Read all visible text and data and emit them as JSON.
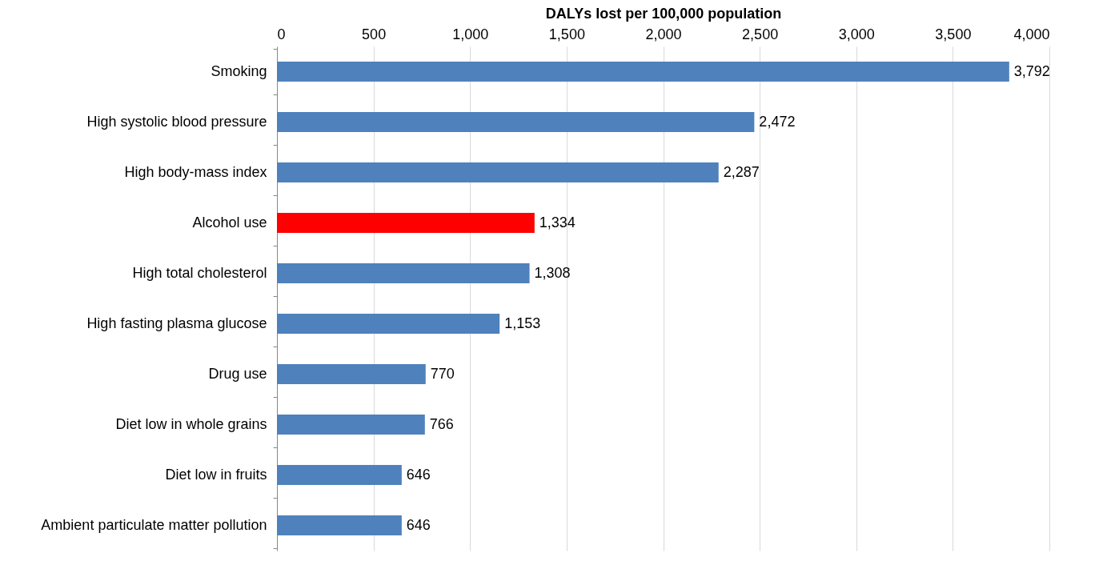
{
  "chart_data": {
    "type": "bar",
    "orientation": "horizontal",
    "xlabel": "DALYs lost per 100,000 population",
    "categories": [
      "Smoking",
      "High systolic blood pressure",
      "High body-mass index",
      "Alcohol use",
      "High total cholesterol",
      "High fasting plasma glucose",
      "Drug use",
      "Diet low in whole grains",
      "Diet low in fruits",
      "Ambient particulate matter pollution"
    ],
    "values": [
      3792,
      2472,
      2287,
      1334,
      1308,
      1153,
      770,
      766,
      646,
      646
    ],
    "value_labels": [
      "3,792",
      "2,472",
      "2,287",
      "1,334",
      "1,308",
      "1,153",
      "770",
      "766",
      "646",
      "646"
    ],
    "colors": [
      "#4f81bd",
      "#4f81bd",
      "#4f81bd",
      "#ff0000",
      "#4f81bd",
      "#4f81bd",
      "#4f81bd",
      "#4f81bd",
      "#4f81bd",
      "#4f81bd"
    ],
    "xlim": [
      0,
      4000
    ],
    "xticks": [
      0,
      {
        "value": 500,
        "label": "500"
      },
      {
        "value": 1000,
        "label": "1,000"
      },
      {
        "value": 1500,
        "label": "1,500"
      },
      {
        "value": 2000,
        "label": "2,000"
      },
      {
        "value": 2500,
        "label": "2,500"
      },
      {
        "value": 3000,
        "label": "3,000"
      },
      {
        "value": 3500,
        "label": "3,500"
      },
      {
        "value": 4000,
        "label": "4,000"
      }
    ],
    "grid": "x"
  }
}
